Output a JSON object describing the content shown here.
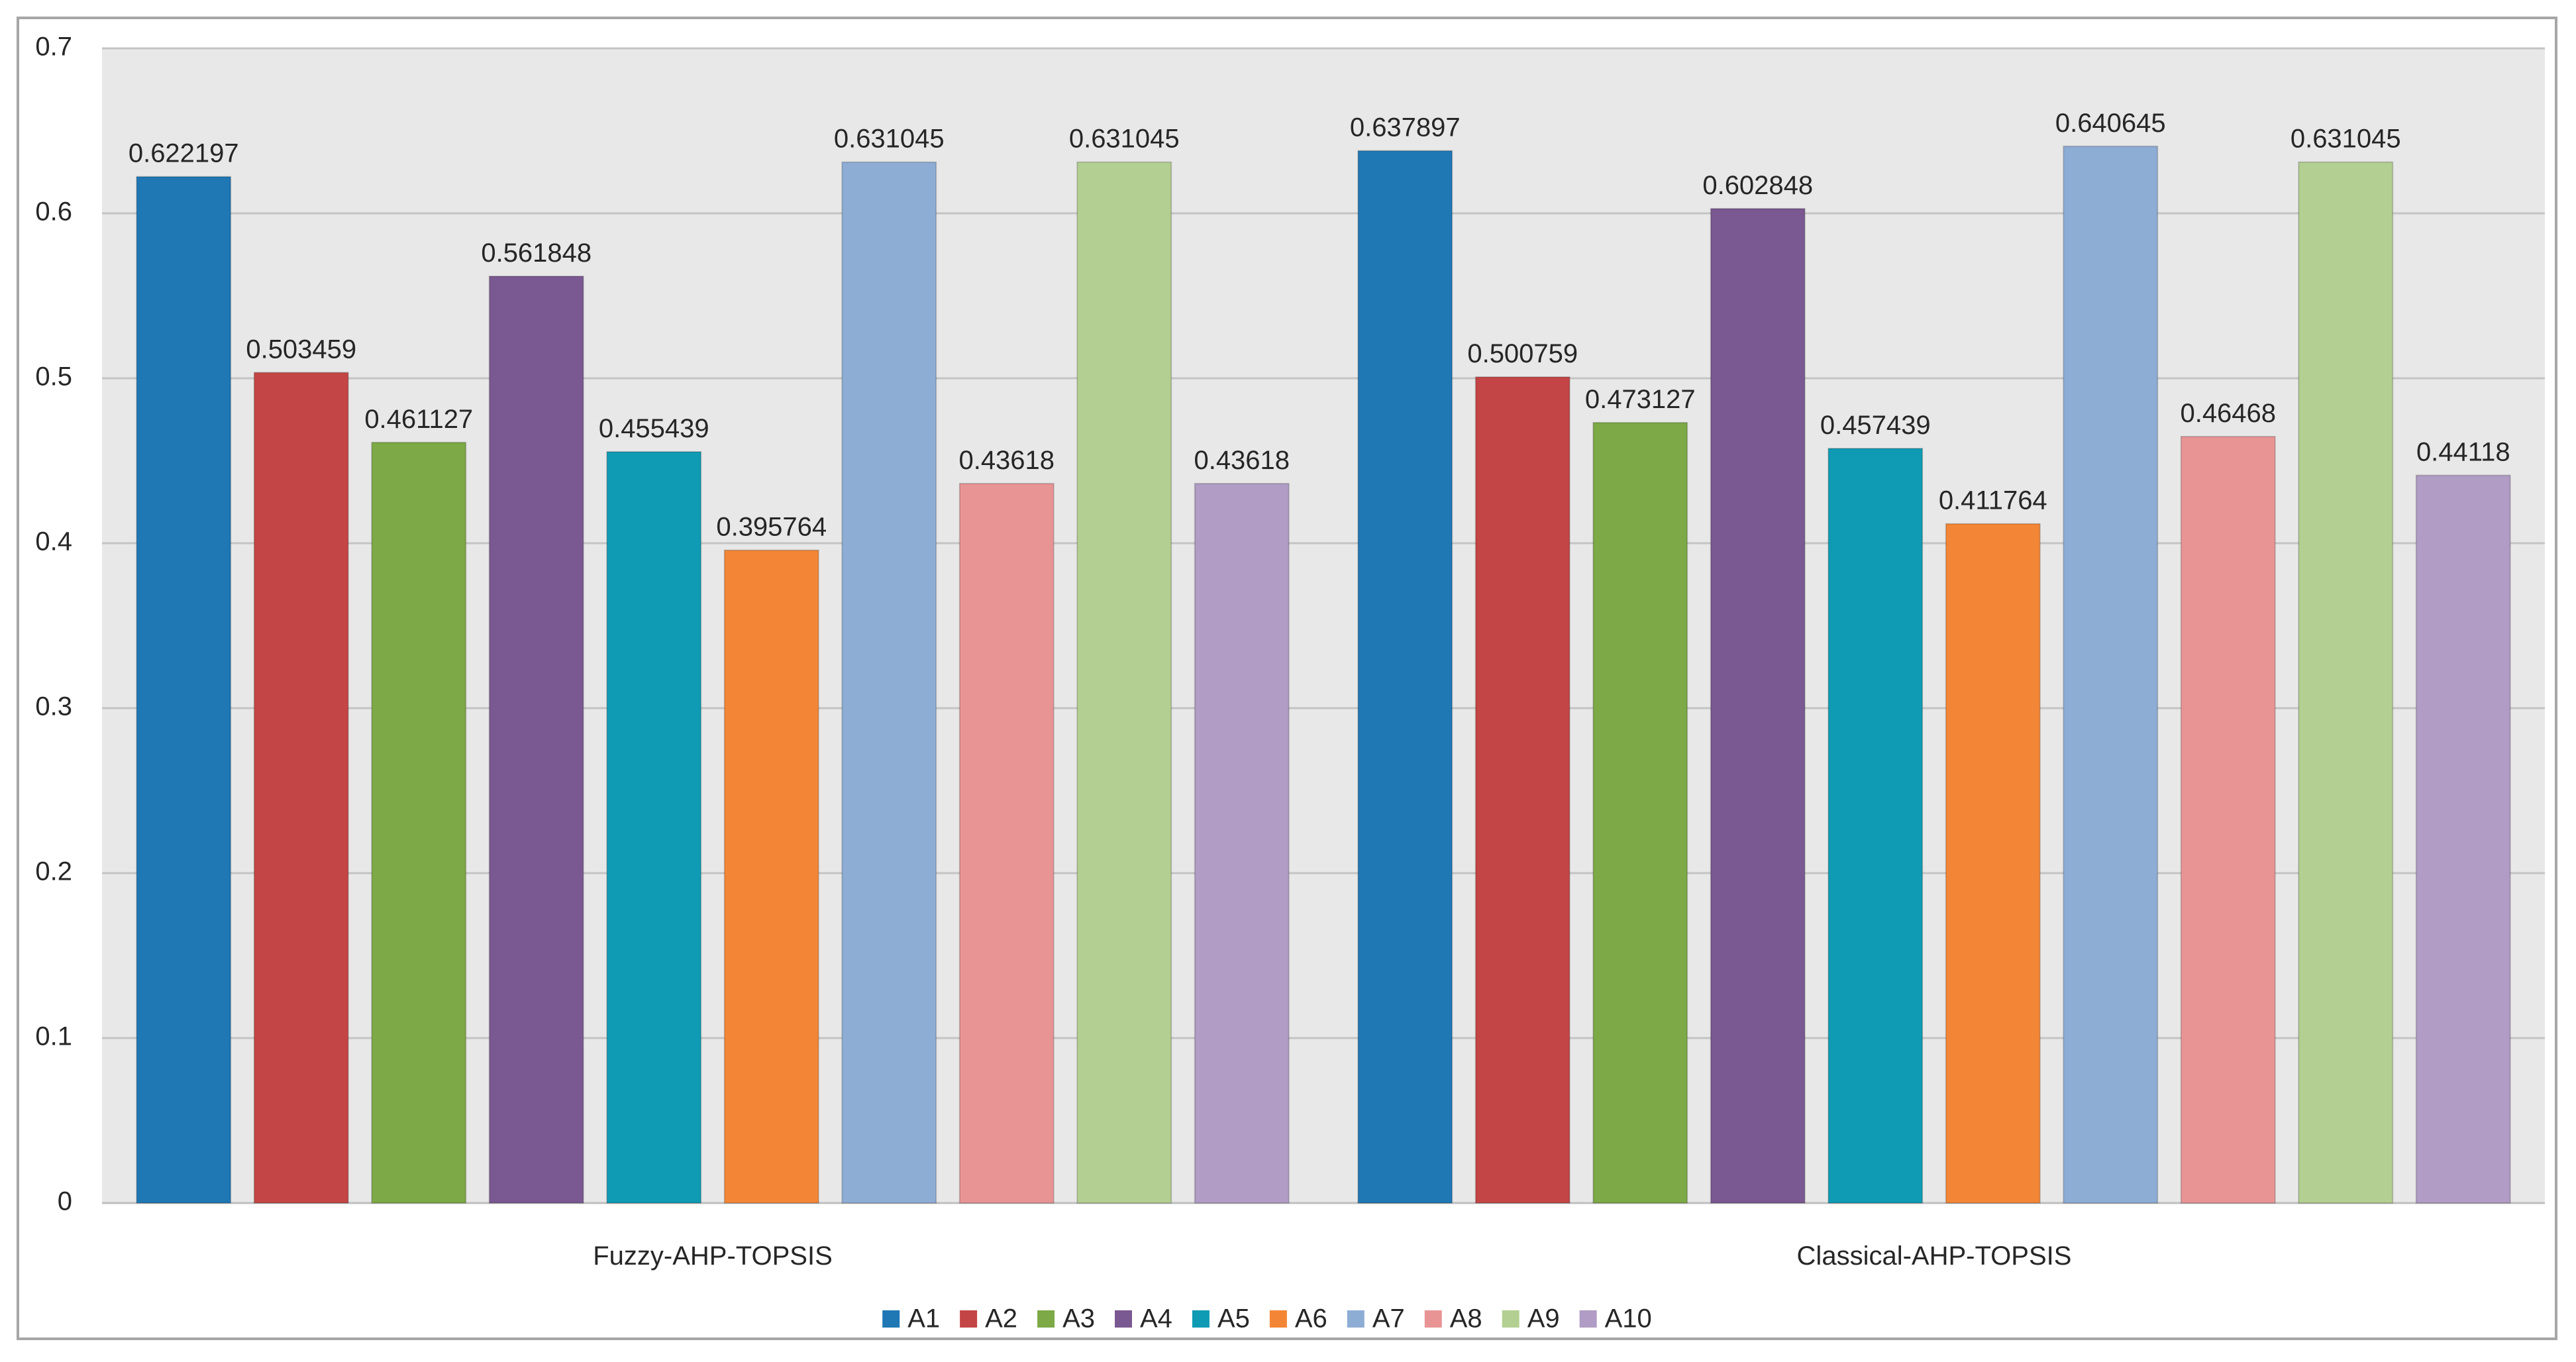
{
  "chart_data": {
    "type": "bar",
    "title": "",
    "xlabel": "",
    "ylabel": "",
    "categories": [
      "Fuzzy-AHP-TOPSIS",
      "Classical-AHP-TOPSIS"
    ],
    "ylim": [
      0,
      0.7
    ],
    "y_ticks": [
      "0",
      "0.1",
      "0.2",
      "0.3",
      "0.4",
      "0.5",
      "0.6",
      "0.7"
    ],
    "grid": true,
    "legend_position": "bottom",
    "plot_background": "#e8e8e8",
    "series": [
      {
        "name": "A1",
        "color": "#1f77b4",
        "values": [
          0.622197,
          0.637897
        ],
        "labels": [
          "0.622197",
          "0.637897"
        ]
      },
      {
        "name": "A2",
        "color": "#c44545",
        "values": [
          0.503459,
          0.500759
        ],
        "labels": [
          "0.503459",
          "0.500759"
        ]
      },
      {
        "name": "A3",
        "color": "#7da946",
        "values": [
          0.461127,
          0.473127
        ],
        "labels": [
          "0.461127",
          "0.473127"
        ]
      },
      {
        "name": "A4",
        "color": "#7a5891",
        "values": [
          0.561848,
          0.602848
        ],
        "labels": [
          "0.561848",
          "0.602848"
        ]
      },
      {
        "name": "A5",
        "color": "#0f9bb3",
        "values": [
          0.455439,
          0.457439
        ],
        "labels": [
          "0.455439",
          "0.457439"
        ]
      },
      {
        "name": "A6",
        "color": "#f38636",
        "values": [
          0.395764,
          0.411764
        ],
        "labels": [
          "0.395764",
          "0.411764"
        ]
      },
      {
        "name": "A7",
        "color": "#8eadd5",
        "values": [
          0.631045,
          0.640645
        ],
        "labels": [
          "0.631045",
          "0.640645"
        ]
      },
      {
        "name": "A8",
        "color": "#e89495",
        "values": [
          0.43618,
          0.46468
        ],
        "labels": [
          "0.43618",
          "0.46468"
        ]
      },
      {
        "name": "A9",
        "color": "#b3cf92",
        "values": [
          0.631045,
          0.631045
        ],
        "labels": [
          "0.631045",
          "0.631045"
        ]
      },
      {
        "name": "A10",
        "color": "#b09cc4",
        "values": [
          0.43618,
          0.44118
        ],
        "labels": [
          "0.43618",
          "0.44118"
        ]
      }
    ]
  }
}
